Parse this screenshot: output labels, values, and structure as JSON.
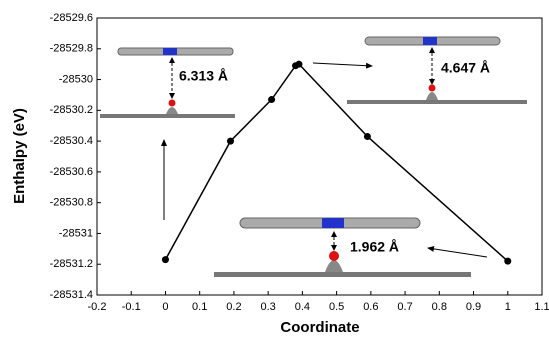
{
  "chart_data": {
    "type": "line",
    "x_label": "Coordinate",
    "y_label": "Enthalpy (eV)",
    "x": [
      0,
      0.19,
      0.31,
      0.38,
      0.39,
      0.59,
      1.0
    ],
    "series": [
      {
        "color": "#000000",
        "values": [
          -28531.17,
          -28530.4,
          -28530.13,
          -28529.91,
          -28529.9,
          -28530.37,
          -28531.18
        ]
      }
    ],
    "xlim": [
      -0.2,
      1.1
    ],
    "xticks": [
      -0.2,
      -0.1,
      0,
      0.1,
      0.2,
      0.3,
      0.4,
      0.5,
      0.6,
      0.7,
      0.8,
      0.9,
      1,
      1.1
    ],
    "ylim": [
      -28531.4,
      -28529.6
    ],
    "yticks": [
      -28531.4,
      -28531.2,
      -28531,
      -28530.8,
      -28530.6,
      -28530.4,
      -28530.2,
      -28530,
      -28529.8,
      -28529.6
    ],
    "annotations": [
      "6.313 Å",
      "4.647 Å",
      "1.962 Å"
    ]
  }
}
